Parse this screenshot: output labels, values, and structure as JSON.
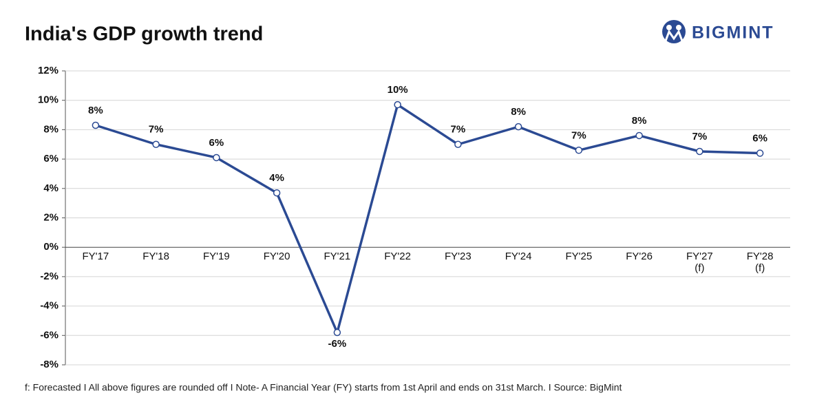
{
  "brand": "BIGMINT",
  "chart_data": {
    "type": "line",
    "title": "India's GDP growth trend",
    "note": "f: Forecasted  I  All above figures are rounded off  I  Note- A Financial Year (FY) starts from 1st April and ends on 31st March.  I  Source: BigMint",
    "categories": [
      "FY'17",
      "FY'18",
      "FY'19",
      "FY'20",
      "FY'21",
      "FY'22",
      "FY'23",
      "FY'24",
      "FY'25",
      "FY'26",
      "FY'27\n(f)",
      "FY'28\n(f)"
    ],
    "series": [
      {
        "name": "GDP growth",
        "color": "#2b4a93",
        "values": [
          8.3,
          7.0,
          6.1,
          3.7,
          -5.8,
          9.7,
          7.0,
          8.2,
          6.6,
          7.6,
          6.52,
          6.4
        ],
        "value_labels": [
          "8%",
          "7%",
          "6%",
          "4%",
          "-6%",
          "10%",
          "7%",
          "8%",
          "7%",
          "8%",
          "7%",
          "6%"
        ]
      }
    ],
    "ylim": [
      -8,
      12
    ],
    "yticks": [
      {
        "value": -8,
        "label": "-8%"
      },
      {
        "value": -6,
        "label": "-6%"
      },
      {
        "value": -4,
        "label": "-4%"
      },
      {
        "value": -2,
        "label": "-2%"
      },
      {
        "value": 0,
        "label": "0%"
      },
      {
        "value": 2,
        "label": "2%"
      },
      {
        "value": 4,
        "label": "4%"
      },
      {
        "value": 6,
        "label": "6%"
      },
      {
        "value": 8,
        "label": "8%"
      },
      {
        "value": 10,
        "label": "10%"
      },
      {
        "value": 12,
        "label": "12%"
      }
    ],
    "grid": true
  }
}
